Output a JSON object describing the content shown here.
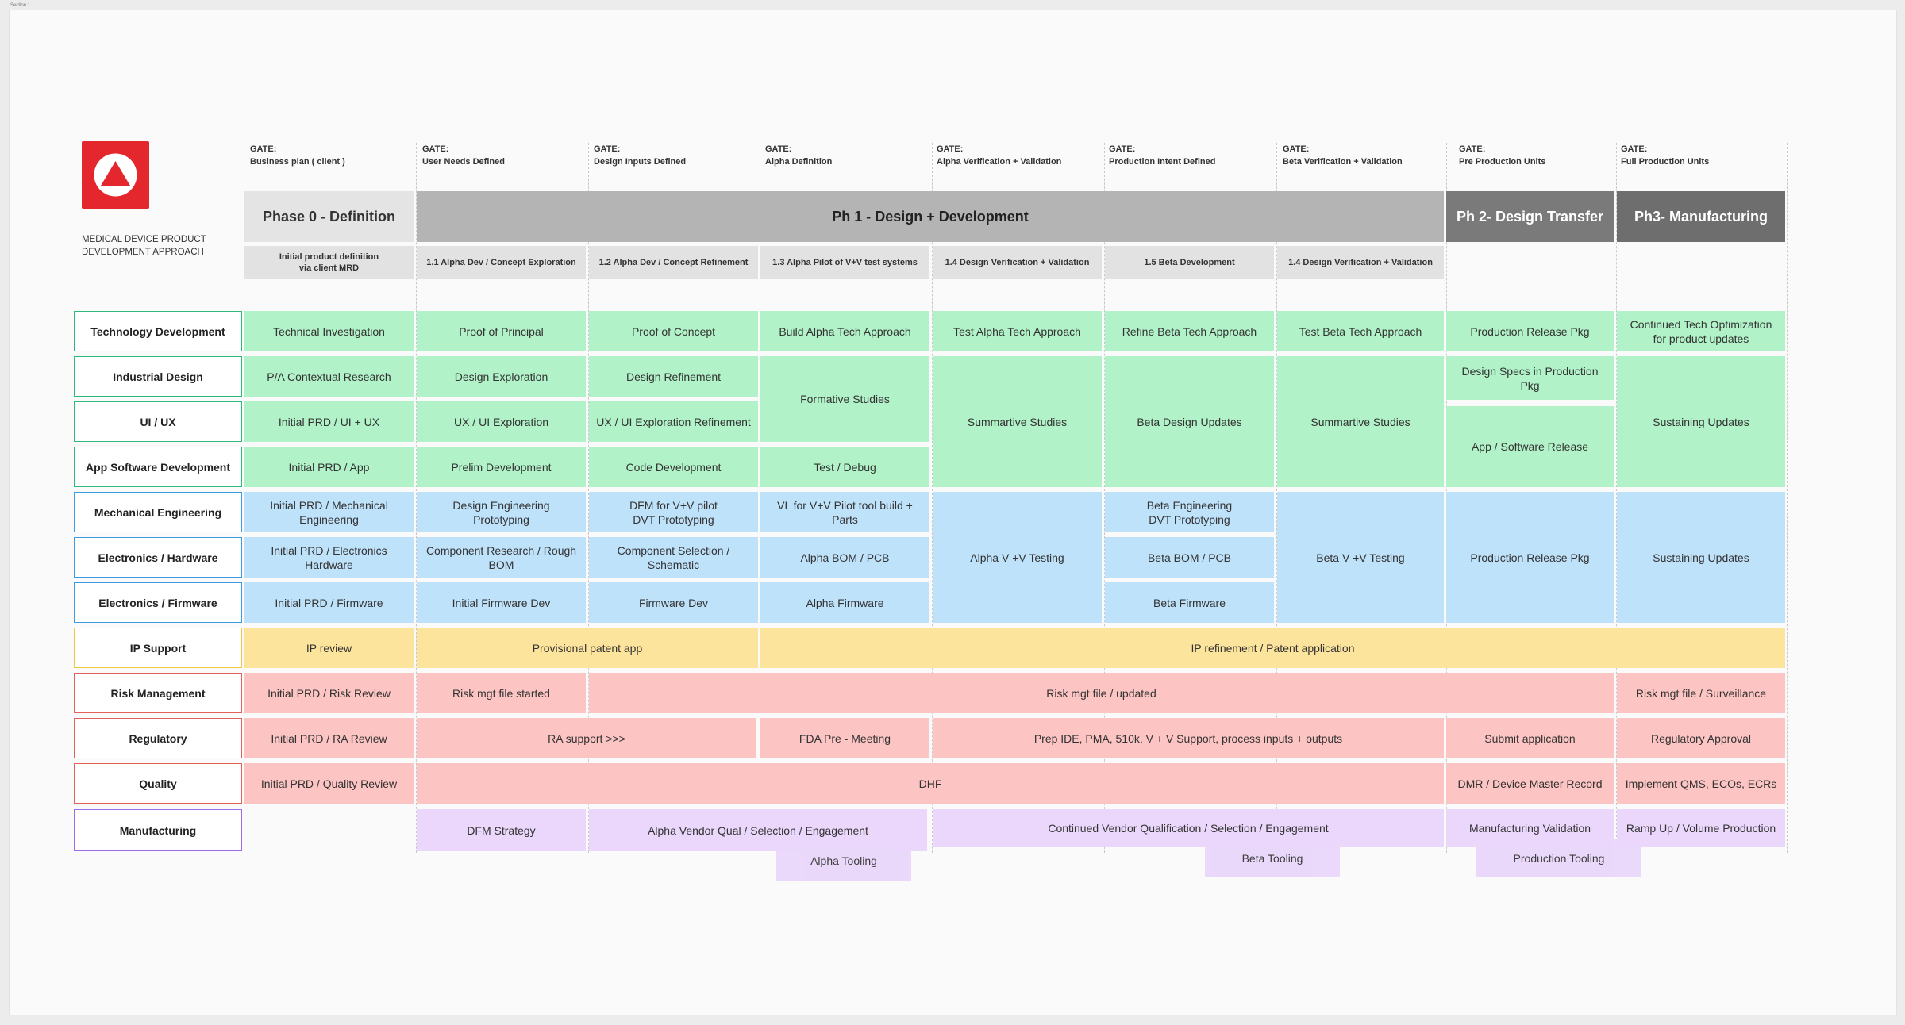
{
  "frame_tab": "Section 1",
  "logo": {
    "caption": "MEDICAL DEVICE PRODUCT DEVELOPMENT APPROACH",
    "icon": "triangle-logo-icon",
    "color": "#e4262d"
  },
  "colors": {
    "green": "#b1f2c8",
    "blue": "#bfe2fb",
    "yellow": "#fde49d",
    "red": "#fcc4c2",
    "purple": "#ead7fb",
    "green_border": "#2fb877",
    "blue_border": "#3c9be0",
    "yellow_border": "#f0c73e",
    "red_border": "#e2605b",
    "purple_border": "#9b6bea"
  },
  "gates": [
    {
      "label": "GATE:",
      "name": "Business plan ( client )"
    },
    {
      "label": "GATE:",
      "name": "User Needs Defined"
    },
    {
      "label": "GATE:",
      "name": "Design Inputs Defined"
    },
    {
      "label": "GATE:",
      "name": "Alpha Definition"
    },
    {
      "label": "GATE:",
      "name": "Alpha Verification + Validation"
    },
    {
      "label": "GATE:",
      "name": "Production Intent Defined"
    },
    {
      "label": "GATE:",
      "name": "Beta Verification + Validation"
    },
    {
      "label": "GATE:",
      "name": "Pre Production Units"
    },
    {
      "label": "GATE:",
      "name": "Full Production Units"
    }
  ],
  "phases": [
    {
      "title": "Phase 0 - Definition"
    },
    {
      "title": "Ph 1 - Design + Development"
    },
    {
      "title": "Ph 2- Design Transfer"
    },
    {
      "title": "Ph3- Manufacturing"
    }
  ],
  "subphases": [
    "Initial product definition\nvia client MRD",
    "1.1 Alpha Dev / Concept Exploration",
    "1.2 Alpha Dev / Concept Refinement",
    "1.3  Alpha Pilot of V+V test systems",
    "1.4 Design Verification + Validation",
    "1.5 Beta Development",
    "1.4 Design Verification + Validation"
  ],
  "rows": [
    "Technology Development",
    "Industrial Design",
    "UI / UX",
    "App Software  Development",
    "Mechanical Engineering",
    "Electronics / Hardware",
    "Electronics / Firmware",
    "IP Support",
    "Risk Management",
    "Regulatory",
    "Quality",
    "Manufacturing"
  ],
  "cells": {
    "tech": [
      "Technical Investigation",
      "Proof of Principal",
      "Proof of Concept",
      "Build Alpha Tech Approach",
      "Test Alpha Tech Approach",
      "Refine Beta Tech Approach",
      "Test Beta Tech Approach",
      "Production Release Pkg",
      "Continued Tech Optimization\nfor product updates"
    ],
    "id": [
      "P/A Contextual Research",
      "Design Exploration",
      "Design Refinement",
      "Design Specs in Production Pkg"
    ],
    "formative": "Formative Studies",
    "summative_1": "Summartive Studies",
    "beta_design": "Beta Design Updates",
    "summative_2": "Summartive Studies",
    "sustaining_1": "Sustaining Updates",
    "ui": [
      "Initial PRD / UI + UX",
      "UX / UI Exploration",
      "UX / UI Exploration Refinement"
    ],
    "app_release": "App / Software Release",
    "app": [
      "Initial PRD / App",
      "Prelim Development",
      "Code Development",
      "Test / Debug"
    ],
    "mech": [
      "Initial PRD / Mechanical\nEngineering",
      "Design Engineering\nPrototyping",
      "DFM for V+V pilot\nDVT Prototyping",
      "VL for V+V Pilot tool build + Parts",
      "Beta Engineering\nDVT Prototyping"
    ],
    "alpha_vv": "Alpha V +V Testing",
    "beta_vv": "Beta V +V Testing",
    "prod_release_2": "Production Release Pkg",
    "sustaining_2": "Sustaining Updates",
    "elec": [
      "Initial PRD / Electronics\nHardware",
      "Component Research / Rough\nBOM",
      "Component Selection /\nSchematic",
      "Alpha BOM / PCB",
      "Beta BOM / PCB"
    ],
    "fw": [
      "Initial PRD / Firmware",
      "Initial Firmware Dev",
      "Firmware Dev",
      "Alpha Firmware",
      "Beta Firmware"
    ],
    "ip": [
      "IP review",
      "Provisional patent app",
      "IP refinement / Patent application"
    ],
    "risk": [
      "Initial PRD / Risk Review",
      "Risk mgt file started",
      "Risk mgt file / updated",
      "Risk mgt file / Surveillance"
    ],
    "reg": [
      "Initial PRD / RA Review",
      "RA support >>>",
      "FDA Pre - Meeting",
      "Prep IDE, PMA, 510k, V + V Support, process inputs + outputs",
      "Submit application",
      "Regulatory Approval"
    ],
    "quality": [
      "Initial PRD / Quality Review",
      "DHF",
      "DMR / Device Master Record",
      "Implement QMS, ECOs, ECRs"
    ],
    "mfg": [
      "DFM Strategy",
      "Alpha Vendor Qual / Selection / Engagement",
      "Continued Vendor Qualification / Selection / Engagement",
      "Manufacturing Validation",
      "Ramp Up / Volume Production"
    ],
    "tooling": [
      "Alpha Tooling",
      "Beta Tooling",
      "Production Tooling"
    ]
  }
}
